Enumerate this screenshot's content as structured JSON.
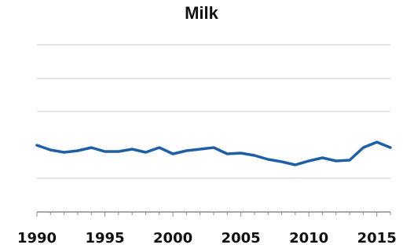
{
  "chart_data": {
    "type": "line",
    "title": "Milk",
    "xlabel": "",
    "ylabel": "",
    "x": [
      1990,
      1991,
      1992,
      1993,
      1994,
      1995,
      1996,
      1997,
      1998,
      1999,
      2000,
      2001,
      2002,
      2003,
      2004,
      2005,
      2006,
      2007,
      2008,
      2009,
      2010,
      2011,
      2012,
      2013,
      2014,
      2015,
      2016
    ],
    "series": [
      {
        "name": "",
        "color": "#1f5fa6",
        "values": [
          185,
          191,
          194,
          192,
          188,
          193,
          193,
          190,
          194,
          188,
          196,
          192,
          190,
          188,
          196,
          195,
          198,
          203,
          206,
          210,
          205,
          201,
          205,
          204,
          188,
          181,
          188
        ]
      }
    ],
    "xlim": [
      1990,
      2016
    ],
    "x_ticks": [
      "1990",
      "1995",
      "2000",
      "2005",
      "2010",
      "2015"
    ],
    "ylim": [
      100,
      300
    ],
    "grid": true,
    "legend": "none"
  }
}
